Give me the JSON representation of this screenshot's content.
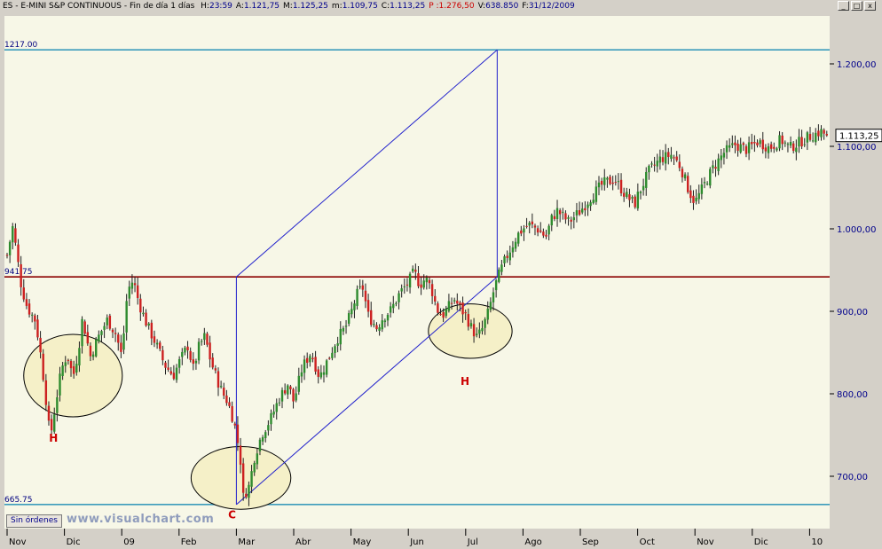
{
  "header": {
    "symbol": "ES",
    "name": "E-MINI S&P CONTINUOUS",
    "period": "Fin de día 1 días",
    "stats": [
      {
        "key": "H",
        "label": "H:",
        "value": "23:59",
        "color": "#000000"
      },
      {
        "key": "A",
        "label": "A:",
        "value": "1.121,75",
        "color": "#000000"
      },
      {
        "key": "M",
        "label": "M:",
        "value": "1.125,25",
        "color": "#000000"
      },
      {
        "key": "m",
        "label": "m:",
        "value": "1.109,75",
        "color": "#000000"
      },
      {
        "key": "C",
        "label": "C:",
        "value": "1.113,25",
        "color": "#000000"
      },
      {
        "key": "P",
        "label": "P :",
        "value": "1.276,50",
        "color": "#cc0000"
      },
      {
        "key": "V",
        "label": "V:",
        "value": "638.850",
        "color": "#000000"
      },
      {
        "key": "F",
        "label": "F:",
        "value": "31/12/2009",
        "color": "#000000"
      }
    ],
    "window_buttons": [
      "_",
      "□",
      "x"
    ]
  },
  "footer": {
    "orders_button": "Sin órdenes",
    "watermark": "www.visualchart.com"
  },
  "colors": {
    "background": "#f7f7e7",
    "frame": "#d4d0c8",
    "bull": "#2e8b2e",
    "bear": "#cc2020",
    "wick": "#202020",
    "resistance": "#8b0000",
    "levels": "#3c9cbc",
    "projection": "#2020cc",
    "ellipse_fill": "#f5f0c8",
    "annotation_text": "#cc0000",
    "label_text": "#000080"
  },
  "chart_data": {
    "type": "candlestick",
    "ylim": [
      655,
      1240
    ],
    "yticks": [
      {
        "value": 700,
        "label": "700,00"
      },
      {
        "value": 800,
        "label": "800,00"
      },
      {
        "value": 900,
        "label": "900,00"
      },
      {
        "value": 1000,
        "label": "1.000,00"
      },
      {
        "value": 1100,
        "label": "1.100,00"
      },
      {
        "value": 1200,
        "label": "1.200,00"
      }
    ],
    "x_months": [
      "Nov",
      "Dic",
      "09",
      "Feb",
      "Mar",
      "Abr",
      "May",
      "Jun",
      "Jul",
      "Ago",
      "Sep",
      "Oct",
      "Nov",
      "Dic",
      "10"
    ],
    "last_price_label": "1.113,25",
    "last_price": 1113.25,
    "horizontal_lines": [
      {
        "name": "top-level-line",
        "value": 1217,
        "label": "1217.00",
        "color_key": "levels"
      },
      {
        "name": "resistance-line",
        "value": 941.75,
        "label": "941.75",
        "color_key": "resistance"
      },
      {
        "name": "bottom-level-line",
        "value": 665.75,
        "label": "665.75",
        "color_key": "levels"
      }
    ],
    "projection": {
      "start_month": 4,
      "end_month": 8.55,
      "low": 665.75,
      "mid": 941.75,
      "high": 1217
    },
    "annotations": [
      {
        "name": "left-shoulder",
        "label": "H",
        "month": 1.15,
        "value": 822,
        "rx_months": 1.72,
        "ry_value": 50,
        "label_value": 742
      },
      {
        "name": "head",
        "label": "C",
        "month": 4.08,
        "value": 698,
        "rx_months": 1.74,
        "ry_value": 38,
        "label_value": 649
      },
      {
        "name": "right-shoulder",
        "label": "H",
        "month": 8.08,
        "value": 876,
        "rx_months": 1.46,
        "ry_value": 33,
        "label_value": 811
      }
    ],
    "path": [
      [
        0.0,
        968
      ],
      [
        0.1,
        1003
      ],
      [
        0.25,
        930
      ],
      [
        0.35,
        905
      ],
      [
        0.5,
        888
      ],
      [
        0.6,
        840
      ],
      [
        0.7,
        780
      ],
      [
        0.75,
        745
      ],
      [
        0.85,
        790
      ],
      [
        0.95,
        830
      ],
      [
        1.05,
        848
      ],
      [
        1.15,
        820
      ],
      [
        1.25,
        855
      ],
      [
        1.3,
        890
      ],
      [
        1.35,
        880
      ],
      [
        1.45,
        845
      ],
      [
        1.6,
        870
      ],
      [
        1.75,
        890
      ],
      [
        1.9,
        872
      ],
      [
        2.0,
        845
      ],
      [
        2.1,
        925
      ],
      [
        2.2,
        938
      ],
      [
        2.3,
        910
      ],
      [
        2.45,
        882
      ],
      [
        2.6,
        860
      ],
      [
        2.75,
        835
      ],
      [
        2.9,
        822
      ],
      [
        3.0,
        838
      ],
      [
        3.15,
        858
      ],
      [
        3.25,
        830
      ],
      [
        3.35,
        858
      ],
      [
        3.45,
        870
      ],
      [
        3.55,
        840
      ],
      [
        3.65,
        820
      ],
      [
        3.75,
        802
      ],
      [
        3.85,
        790
      ],
      [
        3.95,
        768
      ],
      [
        4.0,
        752
      ],
      [
        4.08,
        715
      ],
      [
        4.12,
        675
      ],
      [
        4.22,
        688
      ],
      [
        4.32,
        725
      ],
      [
        4.45,
        752
      ],
      [
        4.6,
        770
      ],
      [
        4.75,
        795
      ],
      [
        4.9,
        812
      ],
      [
        5.0,
        790
      ],
      [
        5.15,
        832
      ],
      [
        5.3,
        850
      ],
      [
        5.45,
        820
      ],
      [
        5.6,
        842
      ],
      [
        5.75,
        866
      ],
      [
        5.9,
        880
      ],
      [
        6.0,
        898
      ],
      [
        6.1,
        920
      ],
      [
        6.2,
        930
      ],
      [
        6.3,
        895
      ],
      [
        6.45,
        880
      ],
      [
        6.55,
        892
      ],
      [
        6.7,
        902
      ],
      [
        6.85,
        922
      ],
      [
        7.0,
        935
      ],
      [
        7.1,
        948
      ],
      [
        7.2,
        932
      ],
      [
        7.3,
        940
      ],
      [
        7.4,
        928
      ],
      [
        7.5,
        902
      ],
      [
        7.6,
        895
      ],
      [
        7.7,
        905
      ],
      [
        7.8,
        915
      ],
      [
        7.9,
        904
      ],
      [
        8.0,
        895
      ],
      [
        8.1,
        880
      ],
      [
        8.2,
        868
      ],
      [
        8.3,
        880
      ],
      [
        8.4,
        900
      ],
      [
        8.5,
        928
      ],
      [
        8.6,
        948
      ],
      [
        8.7,
        964
      ],
      [
        8.8,
        978
      ],
      [
        8.9,
        992
      ],
      [
        9.0,
        1000
      ],
      [
        9.1,
        1005
      ],
      [
        9.25,
        1000
      ],
      [
        9.4,
        990
      ],
      [
        9.5,
        1012
      ],
      [
        9.6,
        1022
      ],
      [
        9.7,
        1015
      ],
      [
        9.8,
        1008
      ],
      [
        10.0,
        1022
      ],
      [
        10.2,
        1040
      ],
      [
        10.4,
        1055
      ],
      [
        10.6,
        1060
      ],
      [
        10.8,
        1040
      ],
      [
        10.95,
        1030
      ],
      [
        11.0,
        1040
      ],
      [
        11.2,
        1070
      ],
      [
        11.4,
        1085
      ],
      [
        11.6,
        1090
      ],
      [
        11.75,
        1075
      ],
      [
        11.9,
        1045
      ],
      [
        12.0,
        1032
      ],
      [
        12.1,
        1045
      ],
      [
        12.3,
        1072
      ],
      [
        12.5,
        1092
      ],
      [
        12.7,
        1102
      ],
      [
        12.9,
        1096
      ],
      [
        13.1,
        1106
      ],
      [
        13.3,
        1098
      ],
      [
        13.5,
        1108
      ],
      [
        13.65,
        1098
      ],
      [
        13.8,
        1104
      ],
      [
        14.0,
        1112
      ],
      [
        14.2,
        1118
      ],
      [
        14.3,
        1113.25
      ]
    ]
  }
}
